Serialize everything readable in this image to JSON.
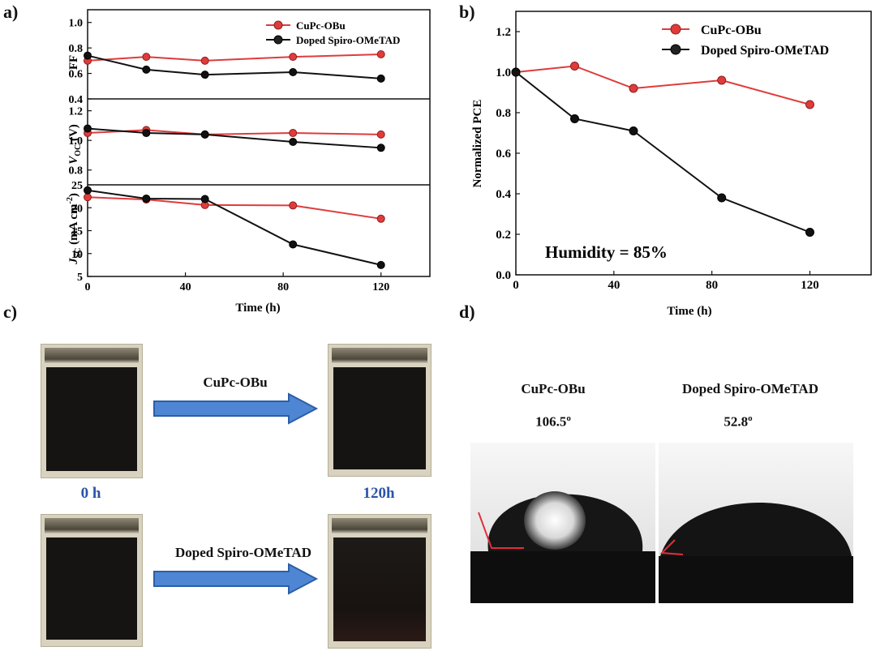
{
  "panel_labels": {
    "a": "a)",
    "b": "b)",
    "c": "c)",
    "d": "d)"
  },
  "colors": {
    "cupc": "#e03b3b",
    "spiro": "#111111",
    "arrow": "#4f86d3",
    "angle_line": "#e0303a"
  },
  "chart_data": [
    {
      "type": "line",
      "panel": "a",
      "ylabel": "FF",
      "xlabel": "",
      "x": [
        0,
        24,
        48,
        84,
        120
      ],
      "xlim": [
        0,
        140
      ],
      "ylim": [
        0.4,
        1.1
      ],
      "yticks": [
        "1.0",
        "0.8",
        "0.6",
        "0.4"
      ],
      "ytick_values": [
        1.0,
        0.8,
        0.6,
        0.4
      ],
      "legend_position": "top-right",
      "series": [
        {
          "name": "CuPc-OBu",
          "values": [
            0.7,
            0.73,
            0.7,
            0.73,
            0.75
          ]
        },
        {
          "name": "Doped Spiro-OMeTAD",
          "values": [
            0.74,
            0.63,
            0.59,
            0.61,
            0.56
          ]
        }
      ]
    },
    {
      "type": "line",
      "panel": "a",
      "ylabel_main": "V",
      "ylabel_sub": "OC",
      "ylabel_unit": " (V)",
      "xlabel": "",
      "x": [
        0,
        24,
        48,
        84,
        120
      ],
      "xlim": [
        0,
        140
      ],
      "ylim": [
        0.7,
        1.28
      ],
      "yticks": [
        "1.2",
        "1.0",
        "0.8"
      ],
      "ytick_values": [
        1.2,
        1.0,
        0.8
      ],
      "series": [
        {
          "name": "CuPc-OBu",
          "values": [
            1.05,
            1.07,
            1.04,
            1.05,
            1.04
          ]
        },
        {
          "name": "Doped Spiro-OMeTAD",
          "values": [
            1.08,
            1.05,
            1.04,
            0.99,
            0.95
          ]
        }
      ]
    },
    {
      "type": "line",
      "panel": "a",
      "ylabel_main": "J",
      "ylabel_sub": "SC",
      "ylabel_unit": " (mA cm",
      "ylabel_sup": "-2",
      "ylabel_end": ")",
      "xlabel": "Time (h)",
      "x": [
        0,
        24,
        48,
        84,
        120
      ],
      "xlim": [
        0,
        140
      ],
      "xticks": [
        "0",
        "40",
        "80",
        "120"
      ],
      "xtick_values": [
        0,
        40,
        80,
        120
      ],
      "ylim": [
        5,
        25
      ],
      "yticks": [
        "25",
        "20",
        "15",
        "10",
        "5"
      ],
      "ytick_values": [
        25,
        20,
        15,
        10,
        5
      ],
      "series": [
        {
          "name": "CuPc-OBu",
          "values": [
            22.3,
            21.8,
            20.6,
            20.5,
            17.6
          ]
        },
        {
          "name": "Doped Spiro-OMeTAD",
          "values": [
            23.8,
            22.0,
            21.9,
            12.0,
            7.5
          ]
        }
      ]
    },
    {
      "type": "line",
      "panel": "b",
      "ylabel": "Normalized PCE",
      "xlabel": "Time (h)",
      "x": [
        0,
        24,
        48,
        84,
        120
      ],
      "xlim": [
        0,
        145
      ],
      "ylim": [
        0.0,
        1.3
      ],
      "xticks": [
        "0",
        "40",
        "80",
        "120"
      ],
      "xtick_values": [
        0,
        40,
        80,
        120
      ],
      "yticks": [
        "0.0",
        "0.2",
        "0.4",
        "0.6",
        "0.8",
        "1.0",
        "1.2"
      ],
      "ytick_values": [
        0.0,
        0.2,
        0.4,
        0.6,
        0.8,
        1.0,
        1.2
      ],
      "annotation": "Humidity = 85%",
      "legend_position": "top-right",
      "series": [
        {
          "name": "CuPc-OBu",
          "values": [
            1.0,
            1.03,
            0.92,
            0.96,
            0.84
          ]
        },
        {
          "name": "Doped Spiro-OMeTAD",
          "values": [
            1.0,
            0.77,
            0.71,
            0.38,
            0.21
          ]
        }
      ]
    }
  ],
  "panel_c": {
    "arrow_top_label": "CuPc-OBu",
    "arrow_bottom_label": "Doped Spiro-OMeTAD",
    "time_start": "0 h",
    "time_end": "120h"
  },
  "panel_d": {
    "left_label": "CuPc-OBu",
    "left_angle": "106.5",
    "right_label": "Doped Spiro-OMeTAD",
    "right_angle": "52.8",
    "degree_mark": "o"
  }
}
